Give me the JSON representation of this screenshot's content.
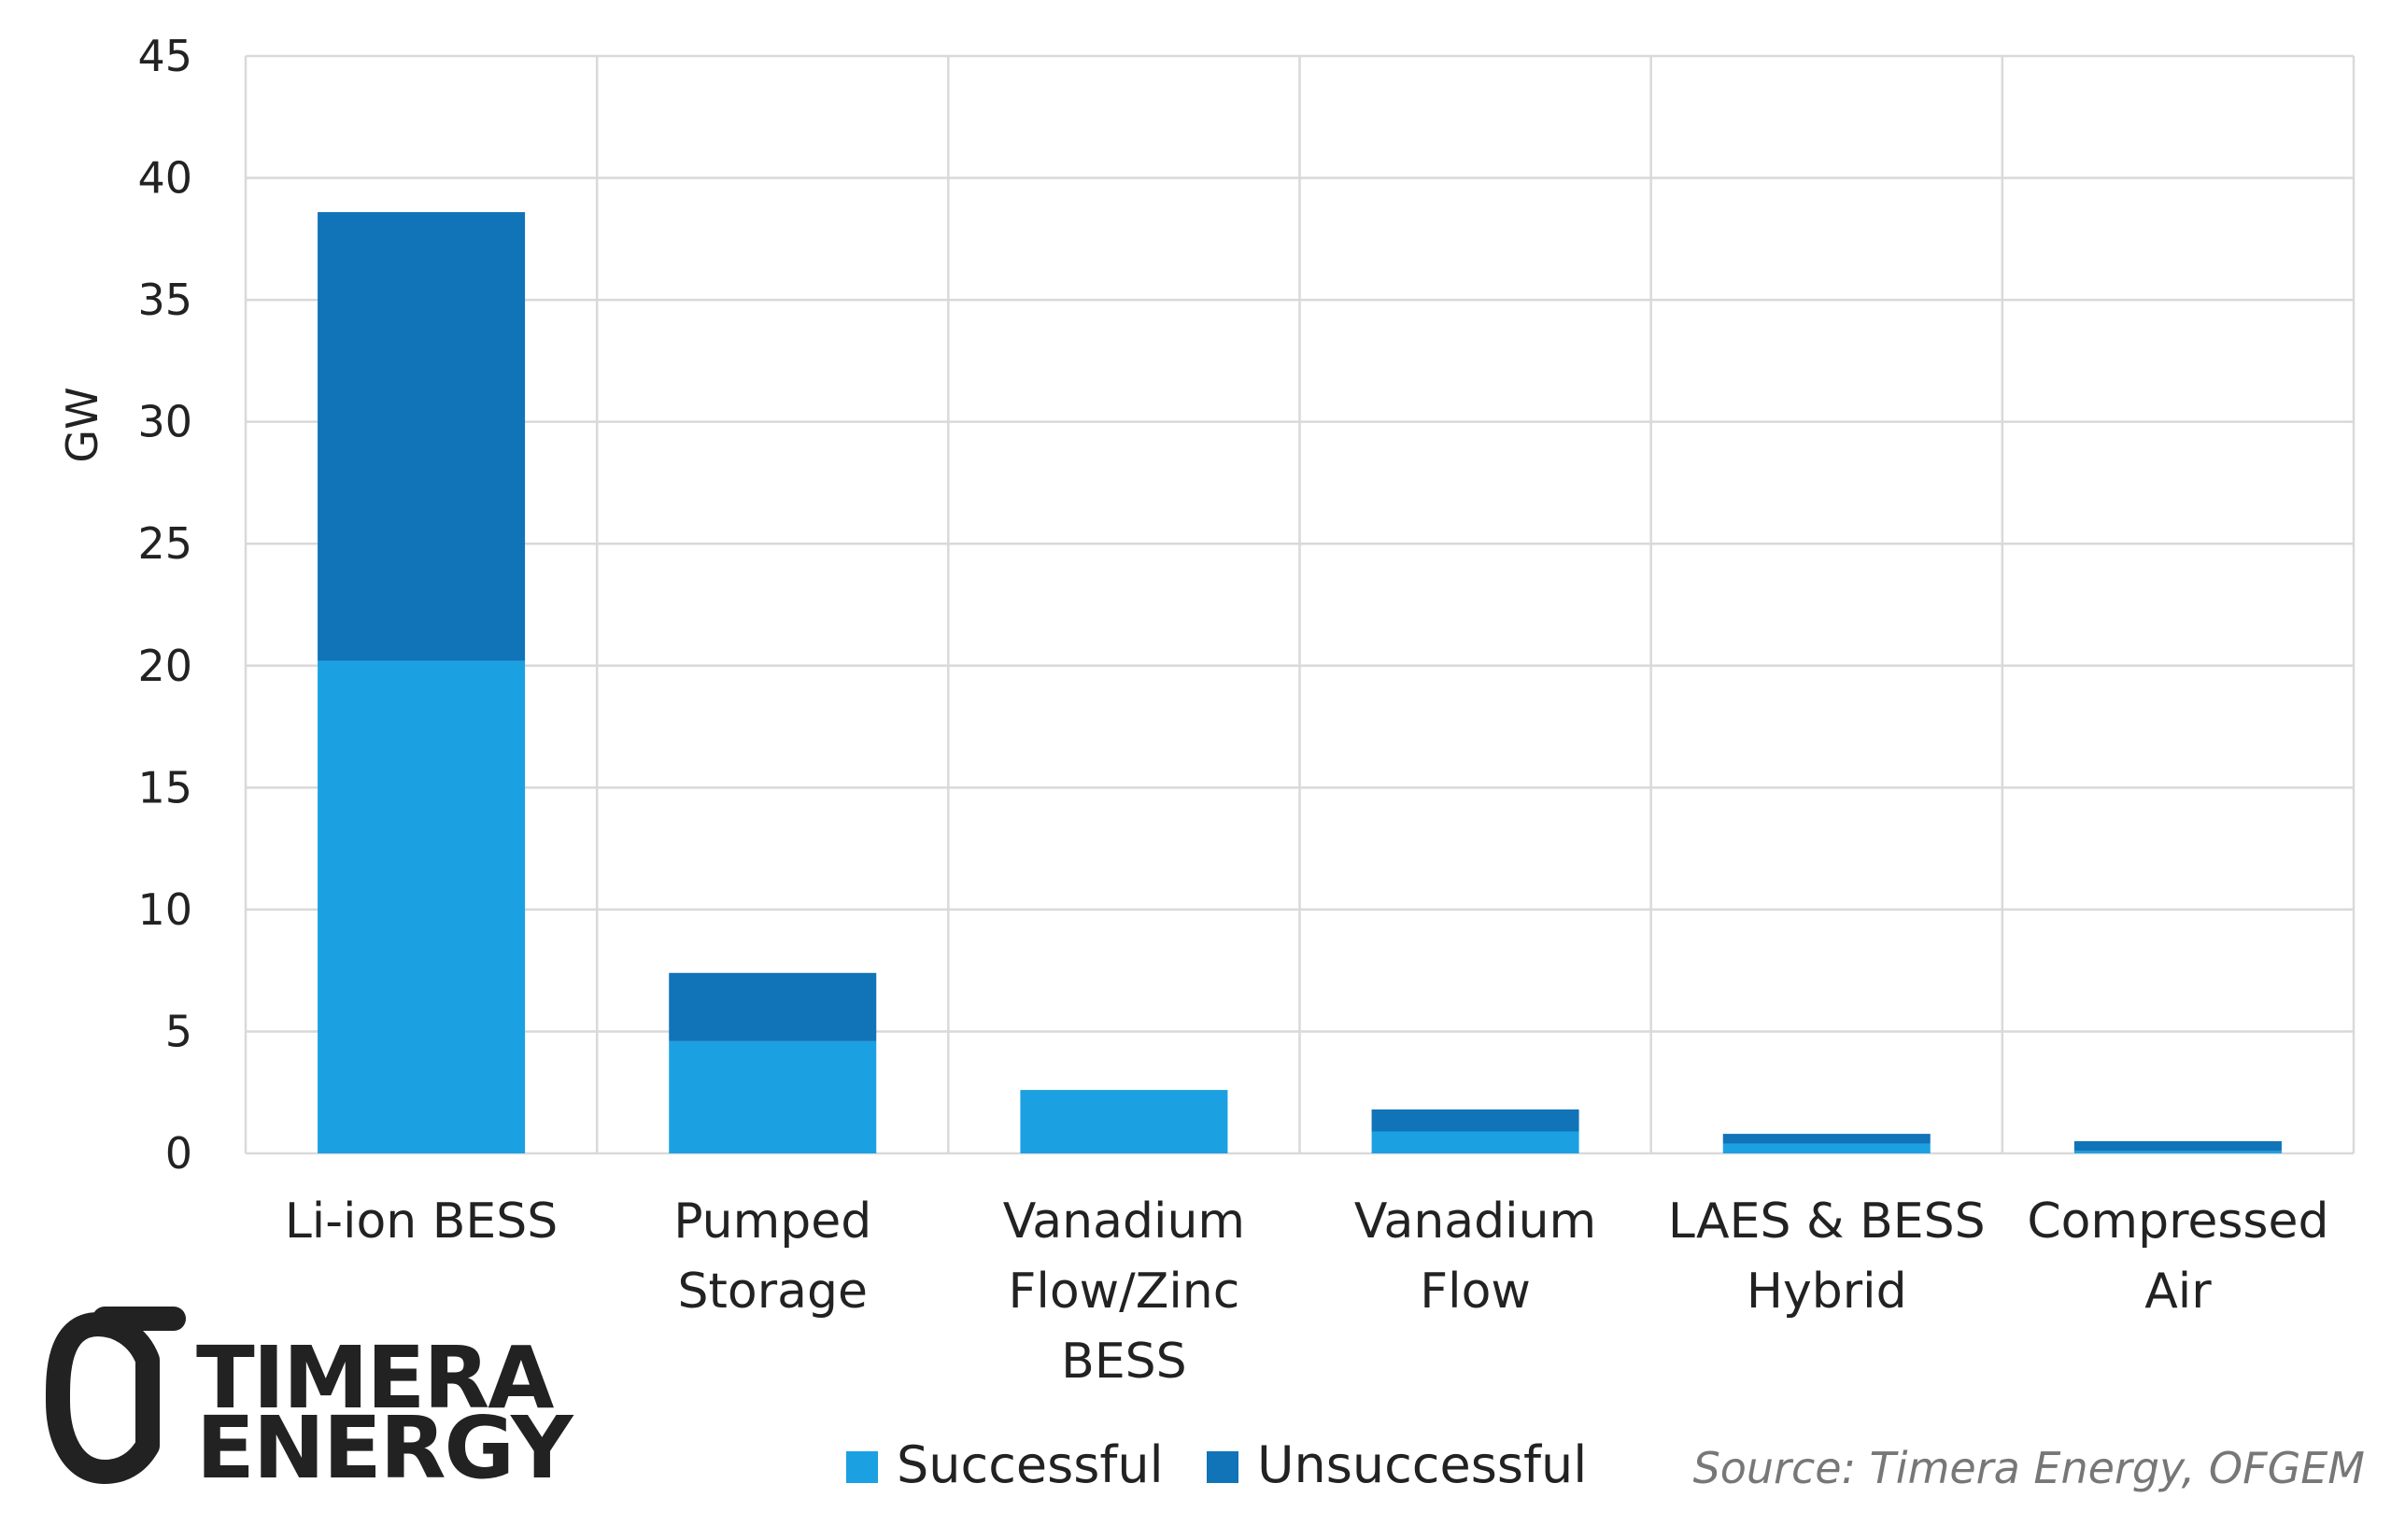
{
  "chart_data": {
    "type": "bar",
    "stacked": true,
    "categories": [
      [
        "Li-ion BESS"
      ],
      [
        "Pumped",
        "Storage"
      ],
      [
        "Vanadium",
        "Flow/Zinc",
        "BESS"
      ],
      [
        "Vanadium",
        "Flow"
      ],
      [
        "LAES & BESS",
        "Hybrid"
      ],
      [
        "Compressed",
        "Air"
      ]
    ],
    "series": [
      {
        "name": "Successful",
        "color": "#1ba1e2",
        "values": [
          20.2,
          4.6,
          2.6,
          0.9,
          0.4,
          0.1
        ]
      },
      {
        "name": "Unsuccessful",
        "color": "#1173b8",
        "values": [
          18.4,
          2.8,
          0.0,
          0.9,
          0.4,
          0.4
        ]
      }
    ],
    "ylabel": "GW",
    "ylim": [
      0,
      45
    ],
    "yticks": [
      "0",
      "5",
      "10",
      "15",
      "20",
      "25",
      "30",
      "35",
      "40",
      "45"
    ],
    "grid": true,
    "legend_position": "bottom"
  },
  "logo": {
    "line1": "TIMERA",
    "line2": "ENERGY"
  },
  "source": "Source: Timera Energy, OFGEM"
}
